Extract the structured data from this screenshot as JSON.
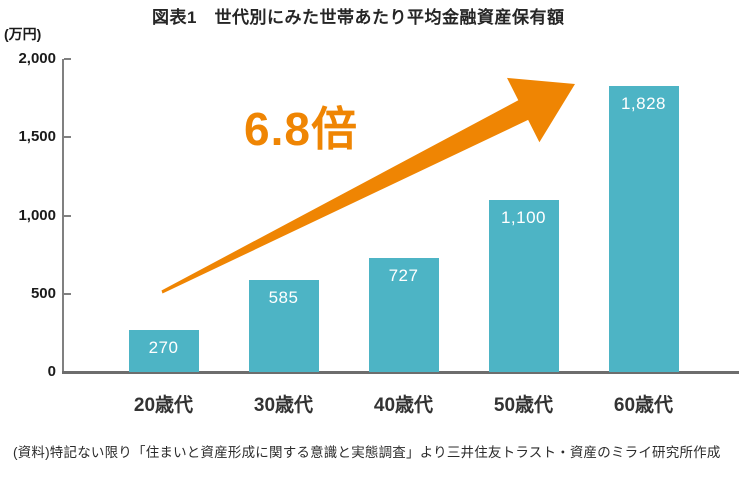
{
  "title": "図表1　世代別にみた世帯あたり平均金融資産保有額",
  "y_unit_label": "(万円)",
  "annotation": {
    "label": "6.8倍"
  },
  "source_note": "(資料)特記ない限り「住まいと資産形成に関する意識と実態調査」より三井住友トラスト・資産のミライ研究所作成",
  "colors": {
    "bar": "#4db4c5",
    "arrow": "#ef8503",
    "axis": "#808080",
    "baseline": "#6d6d6d",
    "value_label": "#ffffff",
    "text": "#262626"
  },
  "chart_data": {
    "type": "bar",
    "title": "図表1　世代別にみた世帯あたり平均金融資産保有額",
    "categories": [
      "20歳代",
      "30歳代",
      "40歳代",
      "50歳代",
      "60歳代"
    ],
    "values": [
      270,
      585,
      727,
      1100,
      1828
    ],
    "value_labels": [
      "270",
      "585",
      "727",
      "1,100",
      "1,828"
    ],
    "xlabel": "",
    "ylabel": "(万円)",
    "ylim": [
      0,
      2000
    ],
    "yticks": [
      0,
      500,
      1000,
      1500,
      2000
    ],
    "ytick_labels": [
      "0",
      "500",
      "1,000",
      "1,500",
      "2,000"
    ],
    "grid": false,
    "legend": false,
    "annotation": "6.8倍",
    "annotation_meaning": "ratio of 60s holdings to 20s holdings"
  }
}
